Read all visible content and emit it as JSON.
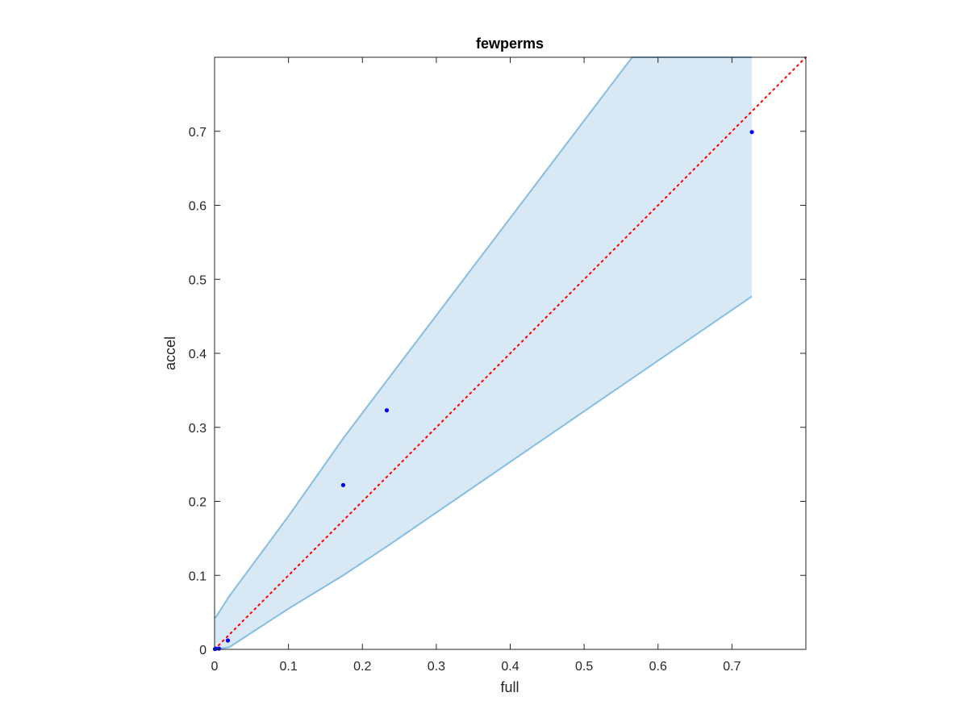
{
  "chart_data": {
    "type": "scatter",
    "title": "fewperms",
    "xlabel": "full",
    "ylabel": "accel",
    "xlim": [
      0,
      0.8
    ],
    "ylim": [
      0,
      0.8
    ],
    "xticks": [
      0,
      0.1,
      0.2,
      0.3,
      0.4,
      0.5,
      0.6,
      0.7
    ],
    "yticks": [
      0,
      0.1,
      0.2,
      0.3,
      0.4,
      0.5,
      0.6,
      0.7
    ],
    "xtick_labels": [
      "0",
      "0.1",
      "0.2",
      "0.3",
      "0.4",
      "0.5",
      "0.6",
      "0.7"
    ],
    "ytick_labels": [
      "0",
      "0.1",
      "0.2",
      "0.3",
      "0.4",
      "0.5",
      "0.6",
      "0.7"
    ],
    "grid": false,
    "series": [
      {
        "kind": "points",
        "color": "#0000ff",
        "x": [
          0.0005,
          0.002,
          0.006,
          0.018,
          0.174,
          0.233,
          0.727
        ],
        "y": [
          0.0005,
          0.001,
          0.001,
          0.012,
          0.222,
          0.323,
          0.699
        ]
      }
    ],
    "band": {
      "fill": "#d9e8f5",
      "edge": "#86bde2",
      "upper": {
        "x": [
          0,
          0.002,
          0.02,
          0.1,
          0.174,
          0.233,
          0.565,
          0.727
        ],
        "y": [
          0.042,
          0.044,
          0.072,
          0.18,
          0.285,
          0.363,
          0.8,
          0.8
        ]
      },
      "lower": {
        "x": [
          0,
          0.002,
          0.02,
          0.1,
          0.174,
          0.233,
          0.727
        ],
        "y": [
          0,
          0,
          0.003,
          0.055,
          0.1,
          0.139,
          0.477
        ]
      },
      "x_end": 0.727
    },
    "reference_line": {
      "style": "dotted",
      "color": "#ff0000",
      "x": [
        0,
        0.8
      ],
      "y": [
        0,
        0.8
      ]
    }
  }
}
